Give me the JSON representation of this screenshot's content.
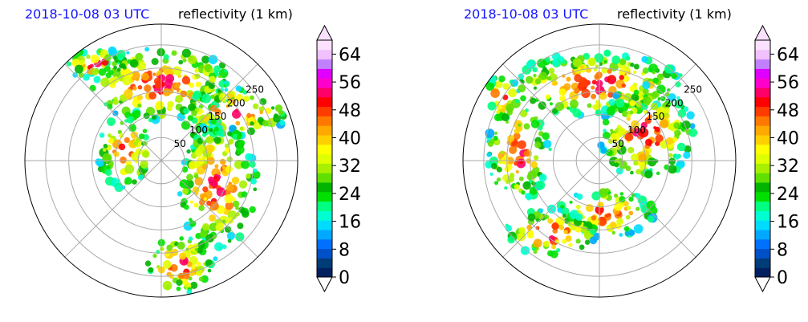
{
  "panels": [
    {
      "time_label": "2018-10-08 03 UTC",
      "field_label": "reflectivity (1 km)",
      "range_ring_labels": [
        "50",
        "100",
        "150",
        "200",
        "250"
      ],
      "colorbar": {
        "ticks": [
          "0",
          "8",
          "16",
          "24",
          "32",
          "40",
          "48",
          "56",
          "64"
        ]
      }
    },
    {
      "time_label": "2018-10-08 03 UTC",
      "field_label": "reflectivity (1 km)",
      "range_ring_labels": [
        "50",
        "100",
        "150",
        "200",
        "250"
      ],
      "colorbar": {
        "ticks": [
          "0",
          "8",
          "16",
          "24",
          "32",
          "40",
          "48",
          "56",
          "64"
        ]
      }
    }
  ],
  "chart_data": [
    {
      "type": "heatmap",
      "projection": "polar",
      "title": "reflectivity (1 km)",
      "subtitle": "2018-10-08 03 UTC",
      "range_rings": [
        50,
        100,
        150,
        200,
        250
      ],
      "colorbar_range": [
        0,
        68
      ],
      "colorbar_ticks": [
        0,
        8,
        16,
        24,
        32,
        40,
        48,
        56,
        64
      ],
      "extend": "both"
    },
    {
      "type": "heatmap",
      "projection": "polar",
      "title": "reflectivity (1 km)",
      "subtitle": "2018-10-08 03 UTC",
      "range_rings": [
        50,
        100,
        150,
        200,
        250
      ],
      "colorbar_range": [
        0,
        68
      ],
      "colorbar_ticks": [
        0,
        8,
        16,
        24,
        32,
        40,
        48,
        56,
        64
      ],
      "extend": "both"
    }
  ],
  "colors": {
    "time_text": "#1515ff",
    "colormap": [
      "#002060",
      "#003c78",
      "#0050c8",
      "#0070ff",
      "#00a8ff",
      "#00dcff",
      "#00ffd0",
      "#00ff80",
      "#00e000",
      "#00b400",
      "#60e000",
      "#a8f000",
      "#e0ff00",
      "#ffff00",
      "#ffd000",
      "#ffa800",
      "#ff7800",
      "#ff3c00",
      "#ff0000",
      "#ff0066",
      "#ff00cc",
      "#e000ff",
      "#c080ff",
      "#f0c0ff",
      "#fce0ff"
    ]
  }
}
